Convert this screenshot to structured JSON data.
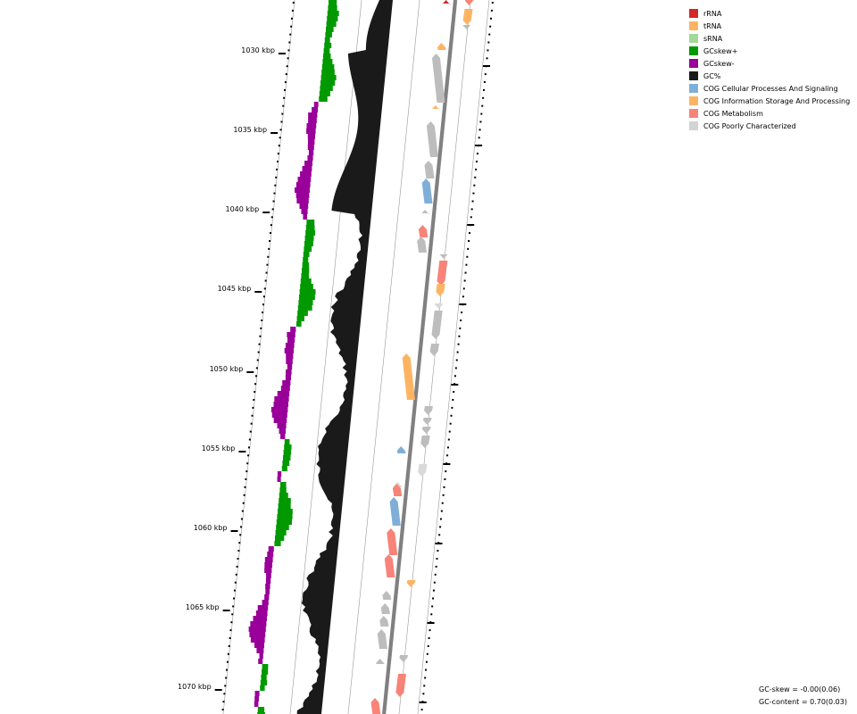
{
  "legend": [
    {
      "label": "rRNA",
      "color": "#d62728"
    },
    {
      "label": "tRNA",
      "color": "#fdb462"
    },
    {
      "label": "sRNA",
      "color": "#a1d99b"
    },
    {
      "label": "GCskew+",
      "color": "#009900"
    },
    {
      "label": "GCskew-",
      "color": "#990099"
    },
    {
      "label": "GC%",
      "color": "#1a1a1a"
    },
    {
      "label": "COG Cellular Processes And Signaling",
      "color": "#7fafd8"
    },
    {
      "label": "COG Information Storage And Processing",
      "color": "#fdb462"
    },
    {
      "label": "COG Metabolism",
      "color": "#f88378"
    },
    {
      "label": "COG Poorly Characterized",
      "color": "#d3d3d3"
    }
  ],
  "stats": {
    "gc_skew": "GC-skew = -0.00(0.06)",
    "gc_content": "GC-content = 0.70(0.03)"
  },
  "ticks": [
    "1030 kbp",
    "1035 kbp",
    "1040 kbp",
    "1045 kbp",
    "1050 kbp",
    "1055 kbp",
    "1060 kbp",
    "1065 kbp",
    "1070 kbp"
  ],
  "colors": {
    "skew_pos": "#009900",
    "skew_neg": "#990099",
    "gc": "#1a1a1a",
    "backbone": "#808080",
    "cog_cell": "#7fafd8",
    "cog_info": "#fdb462",
    "cog_metab": "#f88378",
    "cog_poor": "#bdbdbd",
    "cog_poor_light": "#d9d9d9",
    "rrna": "#d62728"
  }
}
